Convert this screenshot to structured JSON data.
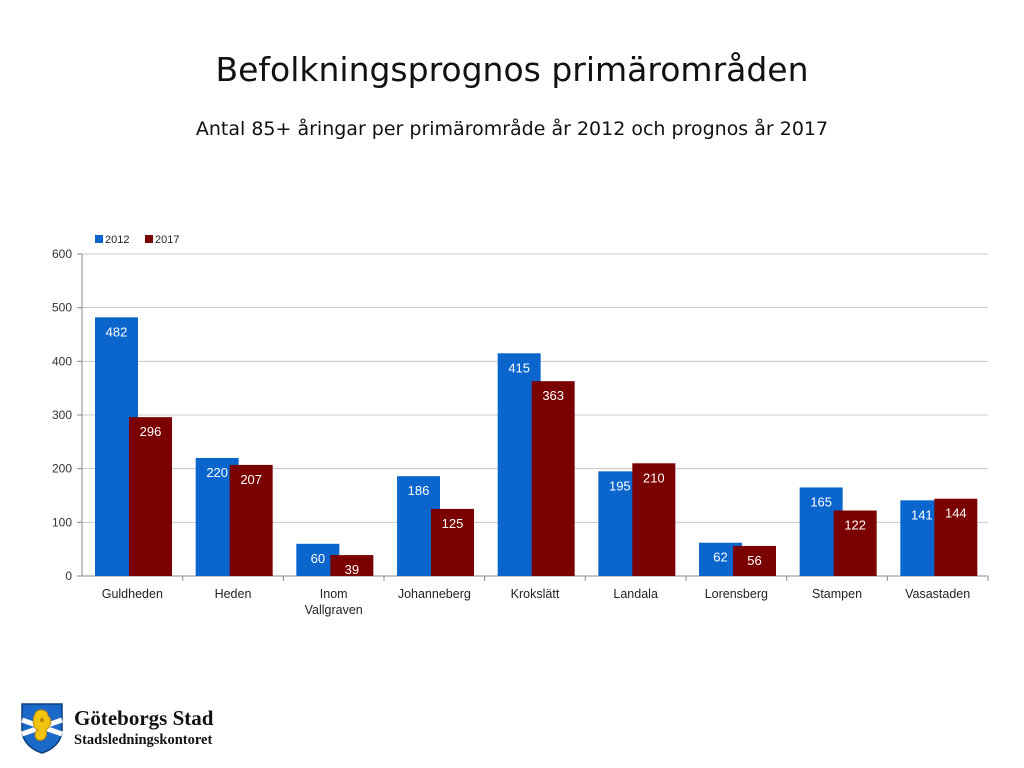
{
  "slide": {
    "title": "Befolkningsprognos primärområden",
    "subtitle": "Antal 85+ åringar per primärområde år 2012 och prognos år 2017"
  },
  "logo": {
    "name": "Göteborgs Stad",
    "department": "Stadsledningskontoret"
  },
  "chart_data": {
    "type": "bar",
    "title": "",
    "xlabel": "",
    "ylabel": "",
    "categories": [
      "Guldheden",
      "Heden",
      "Inom Vallgraven",
      "Johanneberg",
      "Krokslätt",
      "Landala",
      "Lorensberg",
      "Stampen",
      "Vasastaden"
    ],
    "series": [
      {
        "name": "2012",
        "color": "#0A66CC",
        "values": [
          482,
          220,
          60,
          186,
          415,
          195,
          62,
          165,
          141
        ]
      },
      {
        "name": "2017",
        "color": "#7B0000",
        "values": [
          296,
          207,
          39,
          125,
          363,
          210,
          56,
          122,
          144
        ]
      }
    ],
    "ylim": [
      0,
      600
    ],
    "yticks": [
      0,
      100,
      200,
      300,
      400,
      500,
      600
    ],
    "grid": true,
    "legend_position": "top-left"
  }
}
